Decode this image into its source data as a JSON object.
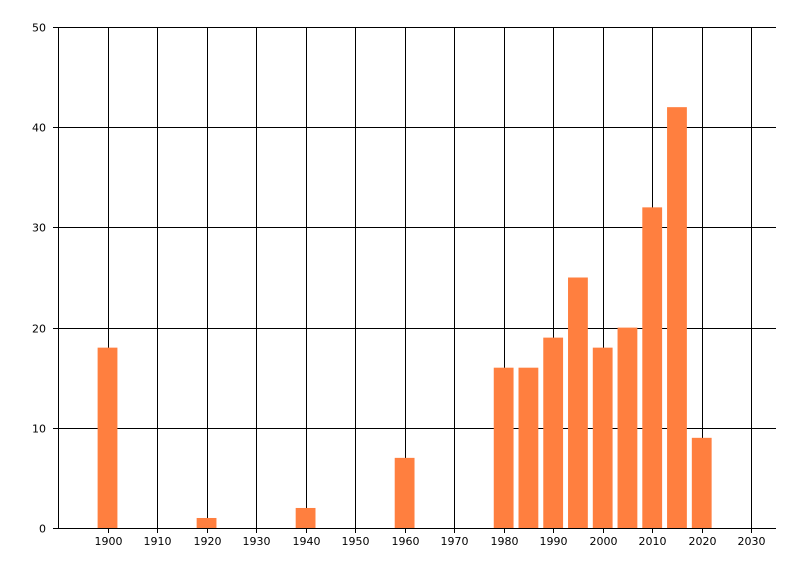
{
  "chart_data": {
    "type": "bar",
    "title": "",
    "xlabel": "",
    "ylabel": "",
    "x": [
      1900,
      1920,
      1940,
      1960,
      1980,
      1985,
      1990,
      1995,
      2000,
      2005,
      2010,
      2015,
      2020
    ],
    "values": [
      18,
      1,
      2,
      7,
      16,
      16,
      19,
      25,
      18,
      20,
      32,
      42,
      9
    ],
    "xlim": [
      1890,
      2035
    ],
    "ylim": [
      0,
      50
    ],
    "x_ticks": [
      1900,
      1910,
      1920,
      1930,
      1940,
      1950,
      1960,
      1970,
      1980,
      1990,
      2000,
      2010,
      2020,
      2030
    ],
    "y_ticks": [
      0,
      10,
      20,
      30,
      40,
      50
    ],
    "bar_width_years": 4,
    "grid": true,
    "bar_color": "#ff7f3f",
    "grid_color": "#000000"
  }
}
